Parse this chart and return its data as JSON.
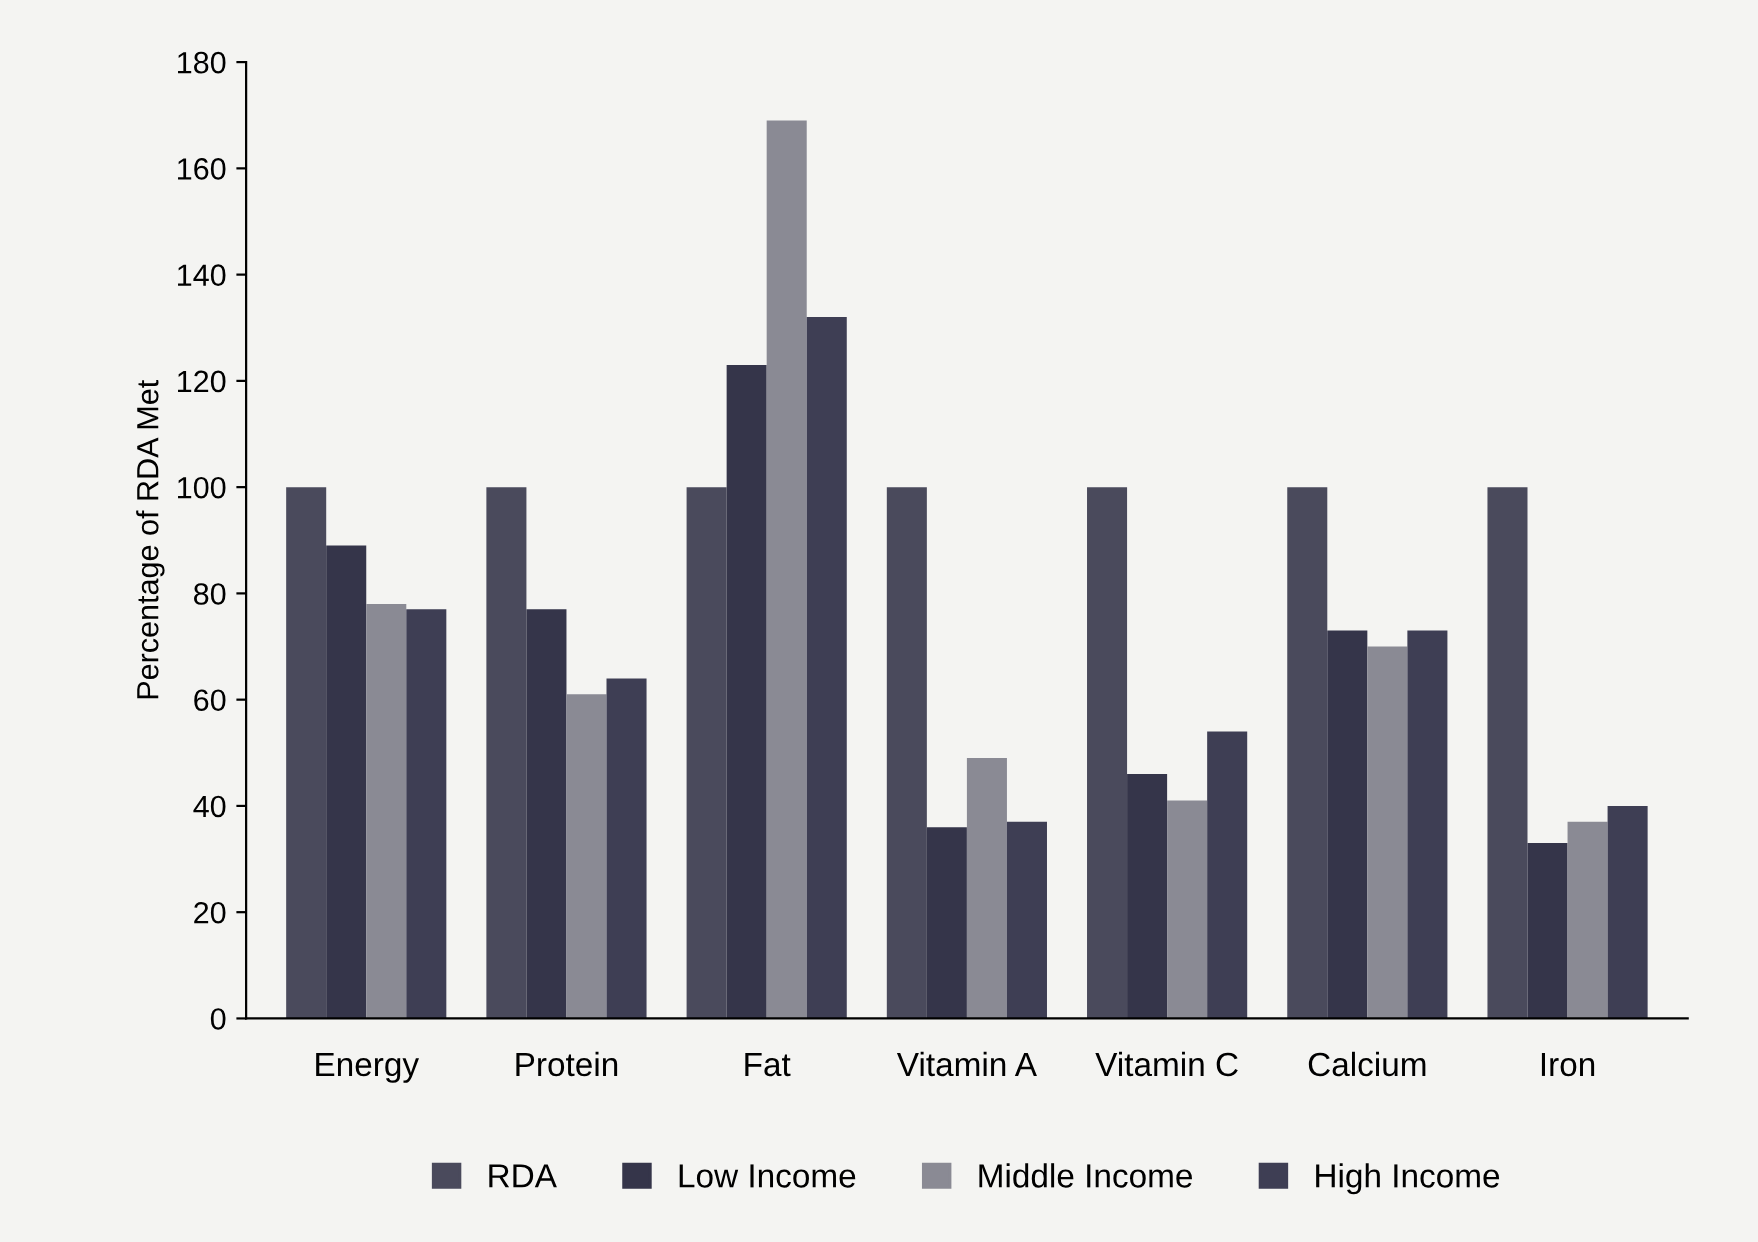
{
  "chart_data": {
    "type": "bar",
    "ylabel": "Percentage of RDA Met",
    "categories": [
      "Energy",
      "Protein",
      "Fat",
      "Vitamin A",
      "Vitamin C",
      "Calcium",
      "Iron"
    ],
    "series": [
      {
        "name": "RDA",
        "color": "#4a4a5c",
        "values": [
          100,
          100,
          100,
          100,
          100,
          100,
          100
        ]
      },
      {
        "name": "Low Income",
        "color": "#35354a",
        "values": [
          89,
          77,
          123,
          36,
          46,
          73,
          33
        ]
      },
      {
        "name": "Middle Income",
        "color": "#8a8a94",
        "values": [
          78,
          61,
          169,
          49,
          41,
          70,
          37
        ]
      },
      {
        "name": "High Income",
        "color": "#3e3e54",
        "values": [
          77,
          64,
          132,
          37,
          54,
          73,
          40
        ]
      }
    ],
    "ylim": [
      0,
      180
    ],
    "yticks": [
      0,
      20,
      40,
      60,
      80,
      100,
      120,
      140,
      160,
      180
    ],
    "grid": false,
    "legend": "bottom"
  }
}
